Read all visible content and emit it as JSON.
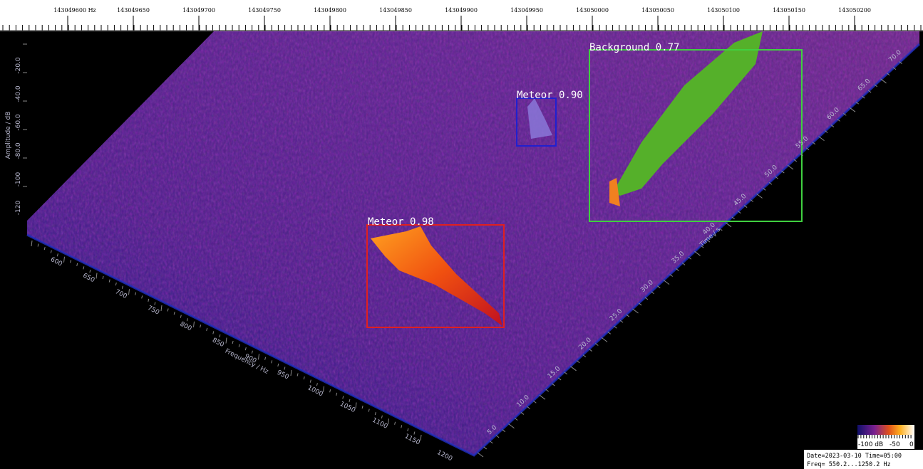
{
  "top_scale": {
    "labels": [
      "143049600 Hz",
      "143049650",
      "143049700",
      "143049750",
      "143049800",
      "143049850",
      "143049900",
      "143049950",
      "143050000",
      "143050050",
      "143050100",
      "143050150",
      "143050200"
    ]
  },
  "amplitude_axis": {
    "title": "Amplitude / dB",
    "labels": [
      "-20.0",
      "-40.0",
      "-60.0",
      "-80.0",
      "-100",
      "-120"
    ]
  },
  "frequency_axis": {
    "title": "Frequency / Hz",
    "labels": [
      "600",
      "650",
      "700",
      "750",
      "800",
      "850",
      "900",
      "950",
      "1000",
      "1050",
      "1100",
      "1150",
      "1200"
    ]
  },
  "time_axis": {
    "title": "Time / s",
    "labels": [
      "5.0",
      "10.0",
      "15.0",
      "20.0",
      "25.0",
      "30.0",
      "35.0",
      "40.0",
      "45.0",
      "50.0",
      "55.0",
      "60.0",
      "65.0",
      "70.0"
    ]
  },
  "detections": [
    {
      "label": "Meteor 0.98"
    },
    {
      "label": "Meteor 0.90"
    },
    {
      "label": "Background 0.77"
    }
  ],
  "color_scale": {
    "labels": [
      "-100 dB",
      "-50",
      "0"
    ]
  },
  "info": {
    "line1": "Date=2023-03-10 Time=05:00",
    "line2": "Freq= 550.2...1250.2 Hz"
  }
}
